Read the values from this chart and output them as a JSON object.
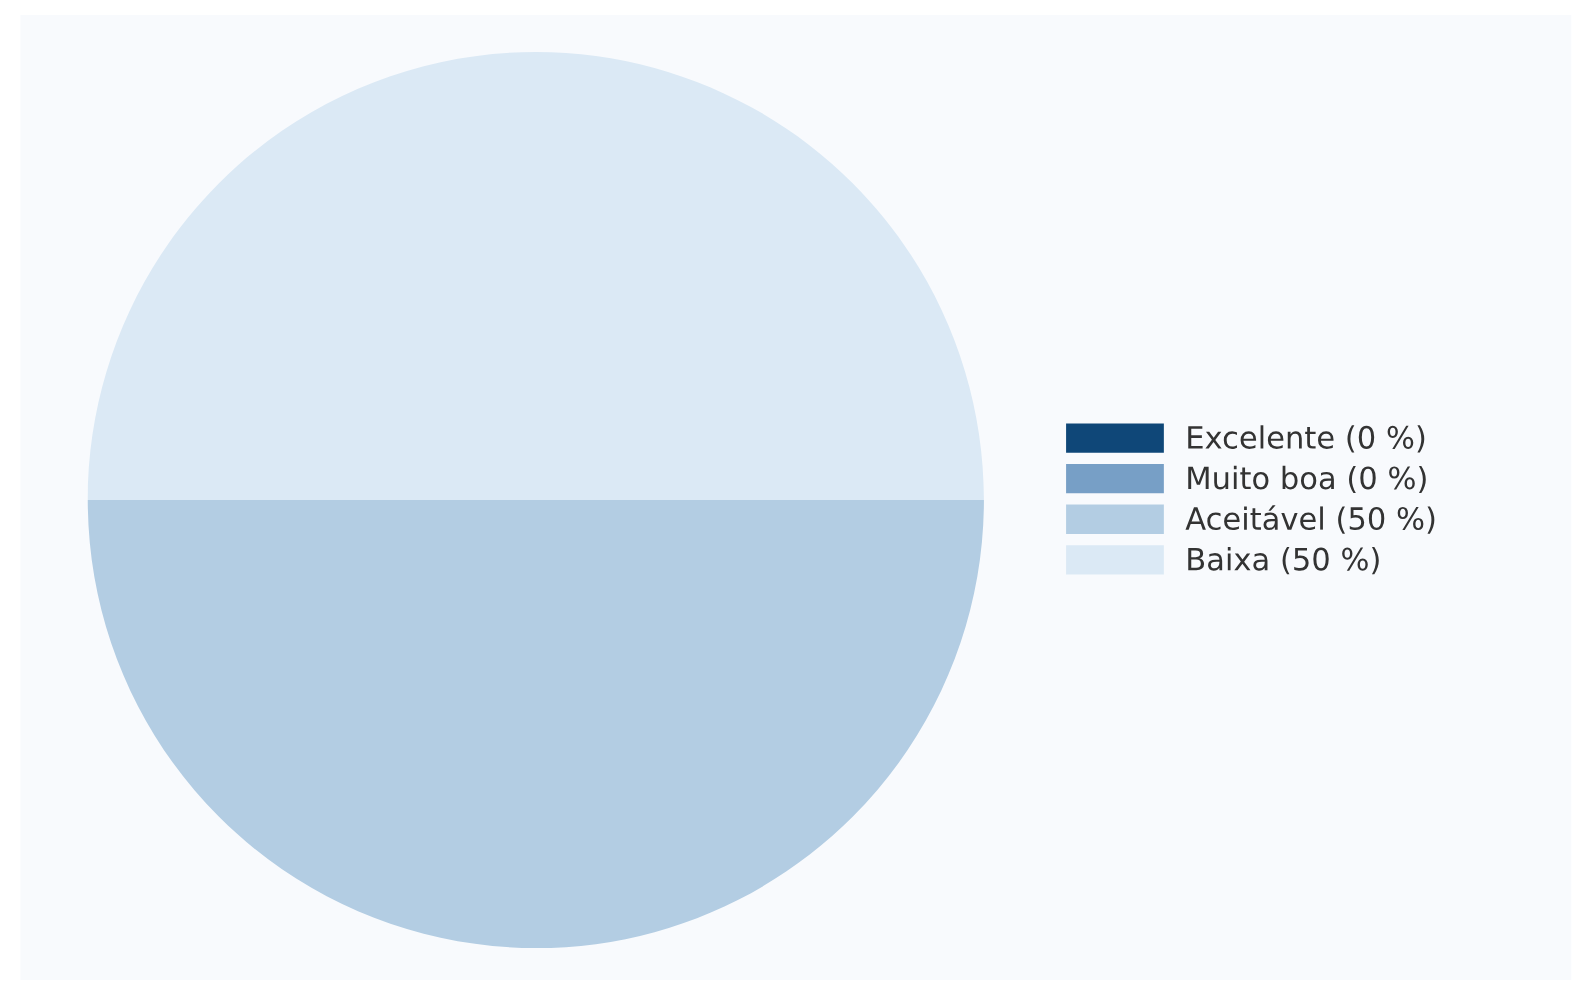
{
  "chart_data": {
    "type": "pie",
    "categories": [
      "Excelente (0 %)",
      "Muito boa (0 %)",
      "Aceitável (50 %)",
      "Baixa (50 %)"
    ],
    "values": [
      0,
      0,
      50,
      50
    ],
    "colors": [
      "#0f4778",
      "#779fc6",
      "#b3cde3",
      "#dbe9f5"
    ],
    "legend": "right"
  }
}
